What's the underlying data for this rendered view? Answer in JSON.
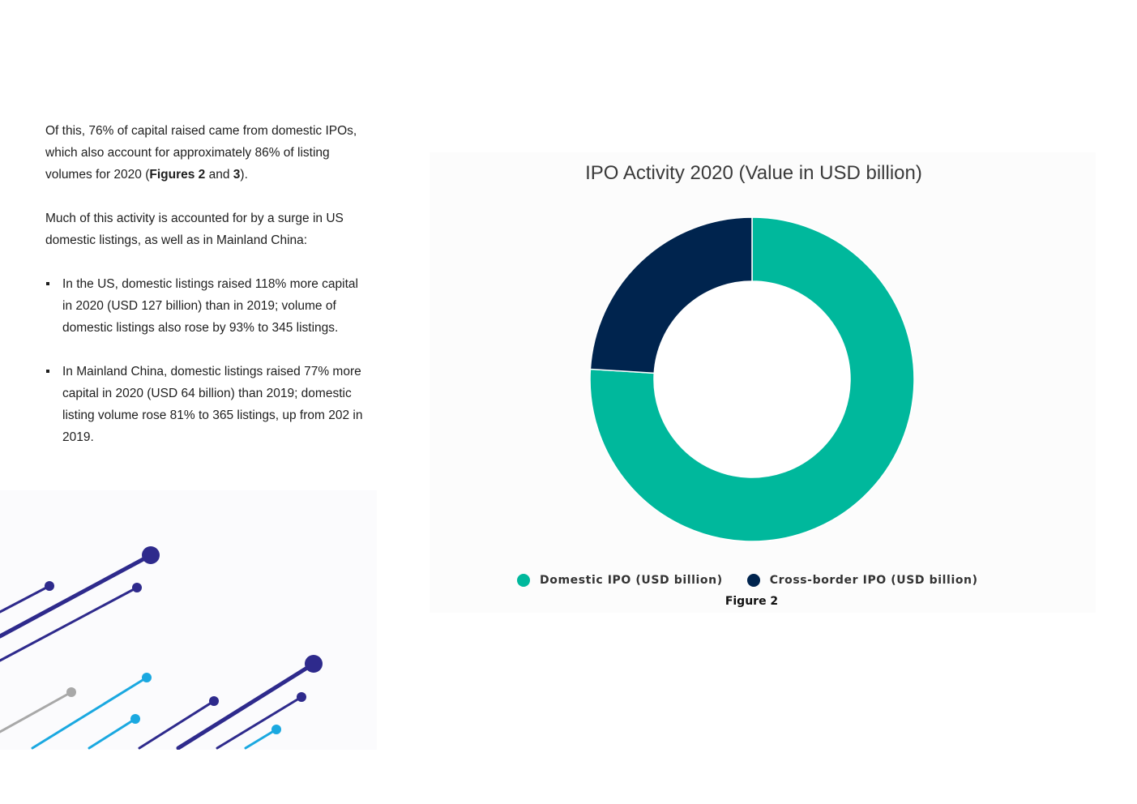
{
  "body_text": {
    "para1": {
      "pre": "Of this, 76% of capital raised came from domestic IPOs, which also account for approximately 86% of listing volumes for 2020 (",
      "bold1": "Figures 2",
      "mid": " and ",
      "bold2": "3",
      "post": ")."
    },
    "para2": "Much of this activity is accounted for by a surge in US domestic listings, as well as in Mainland China:",
    "bullets": [
      "In the US, domestic listings raised 118% more capital in 2020 (USD 127 billion) than in 2019; volume of domestic listings also rose by 93% to 345 listings.",
      "In Mainland China, domestic listings raised 77% more capital in 2020 (USD 64 billion) than 2019; domestic listing volume rose 81% to 365 listings, up from 202 in 2019."
    ]
  },
  "colors": {
    "domestic": "#00b89c",
    "crossborder": "#00244e",
    "deco_dark": "#2e2a8c",
    "deco_light": "#1aa8e0",
    "deco_grey": "#a8a8a8"
  },
  "chart_data": {
    "type": "pie",
    "variant": "donut",
    "title": "IPO Activity 2020 (Value in USD billion)",
    "slices": [
      {
        "label": "Domestic IPO (USD billion)",
        "value": 76,
        "color": "#00b89c"
      },
      {
        "label": "Cross-border IPO (USD billion)",
        "value": 24,
        "color": "#00244e"
      }
    ],
    "legend_position": "bottom",
    "caption": "Figure 2"
  }
}
